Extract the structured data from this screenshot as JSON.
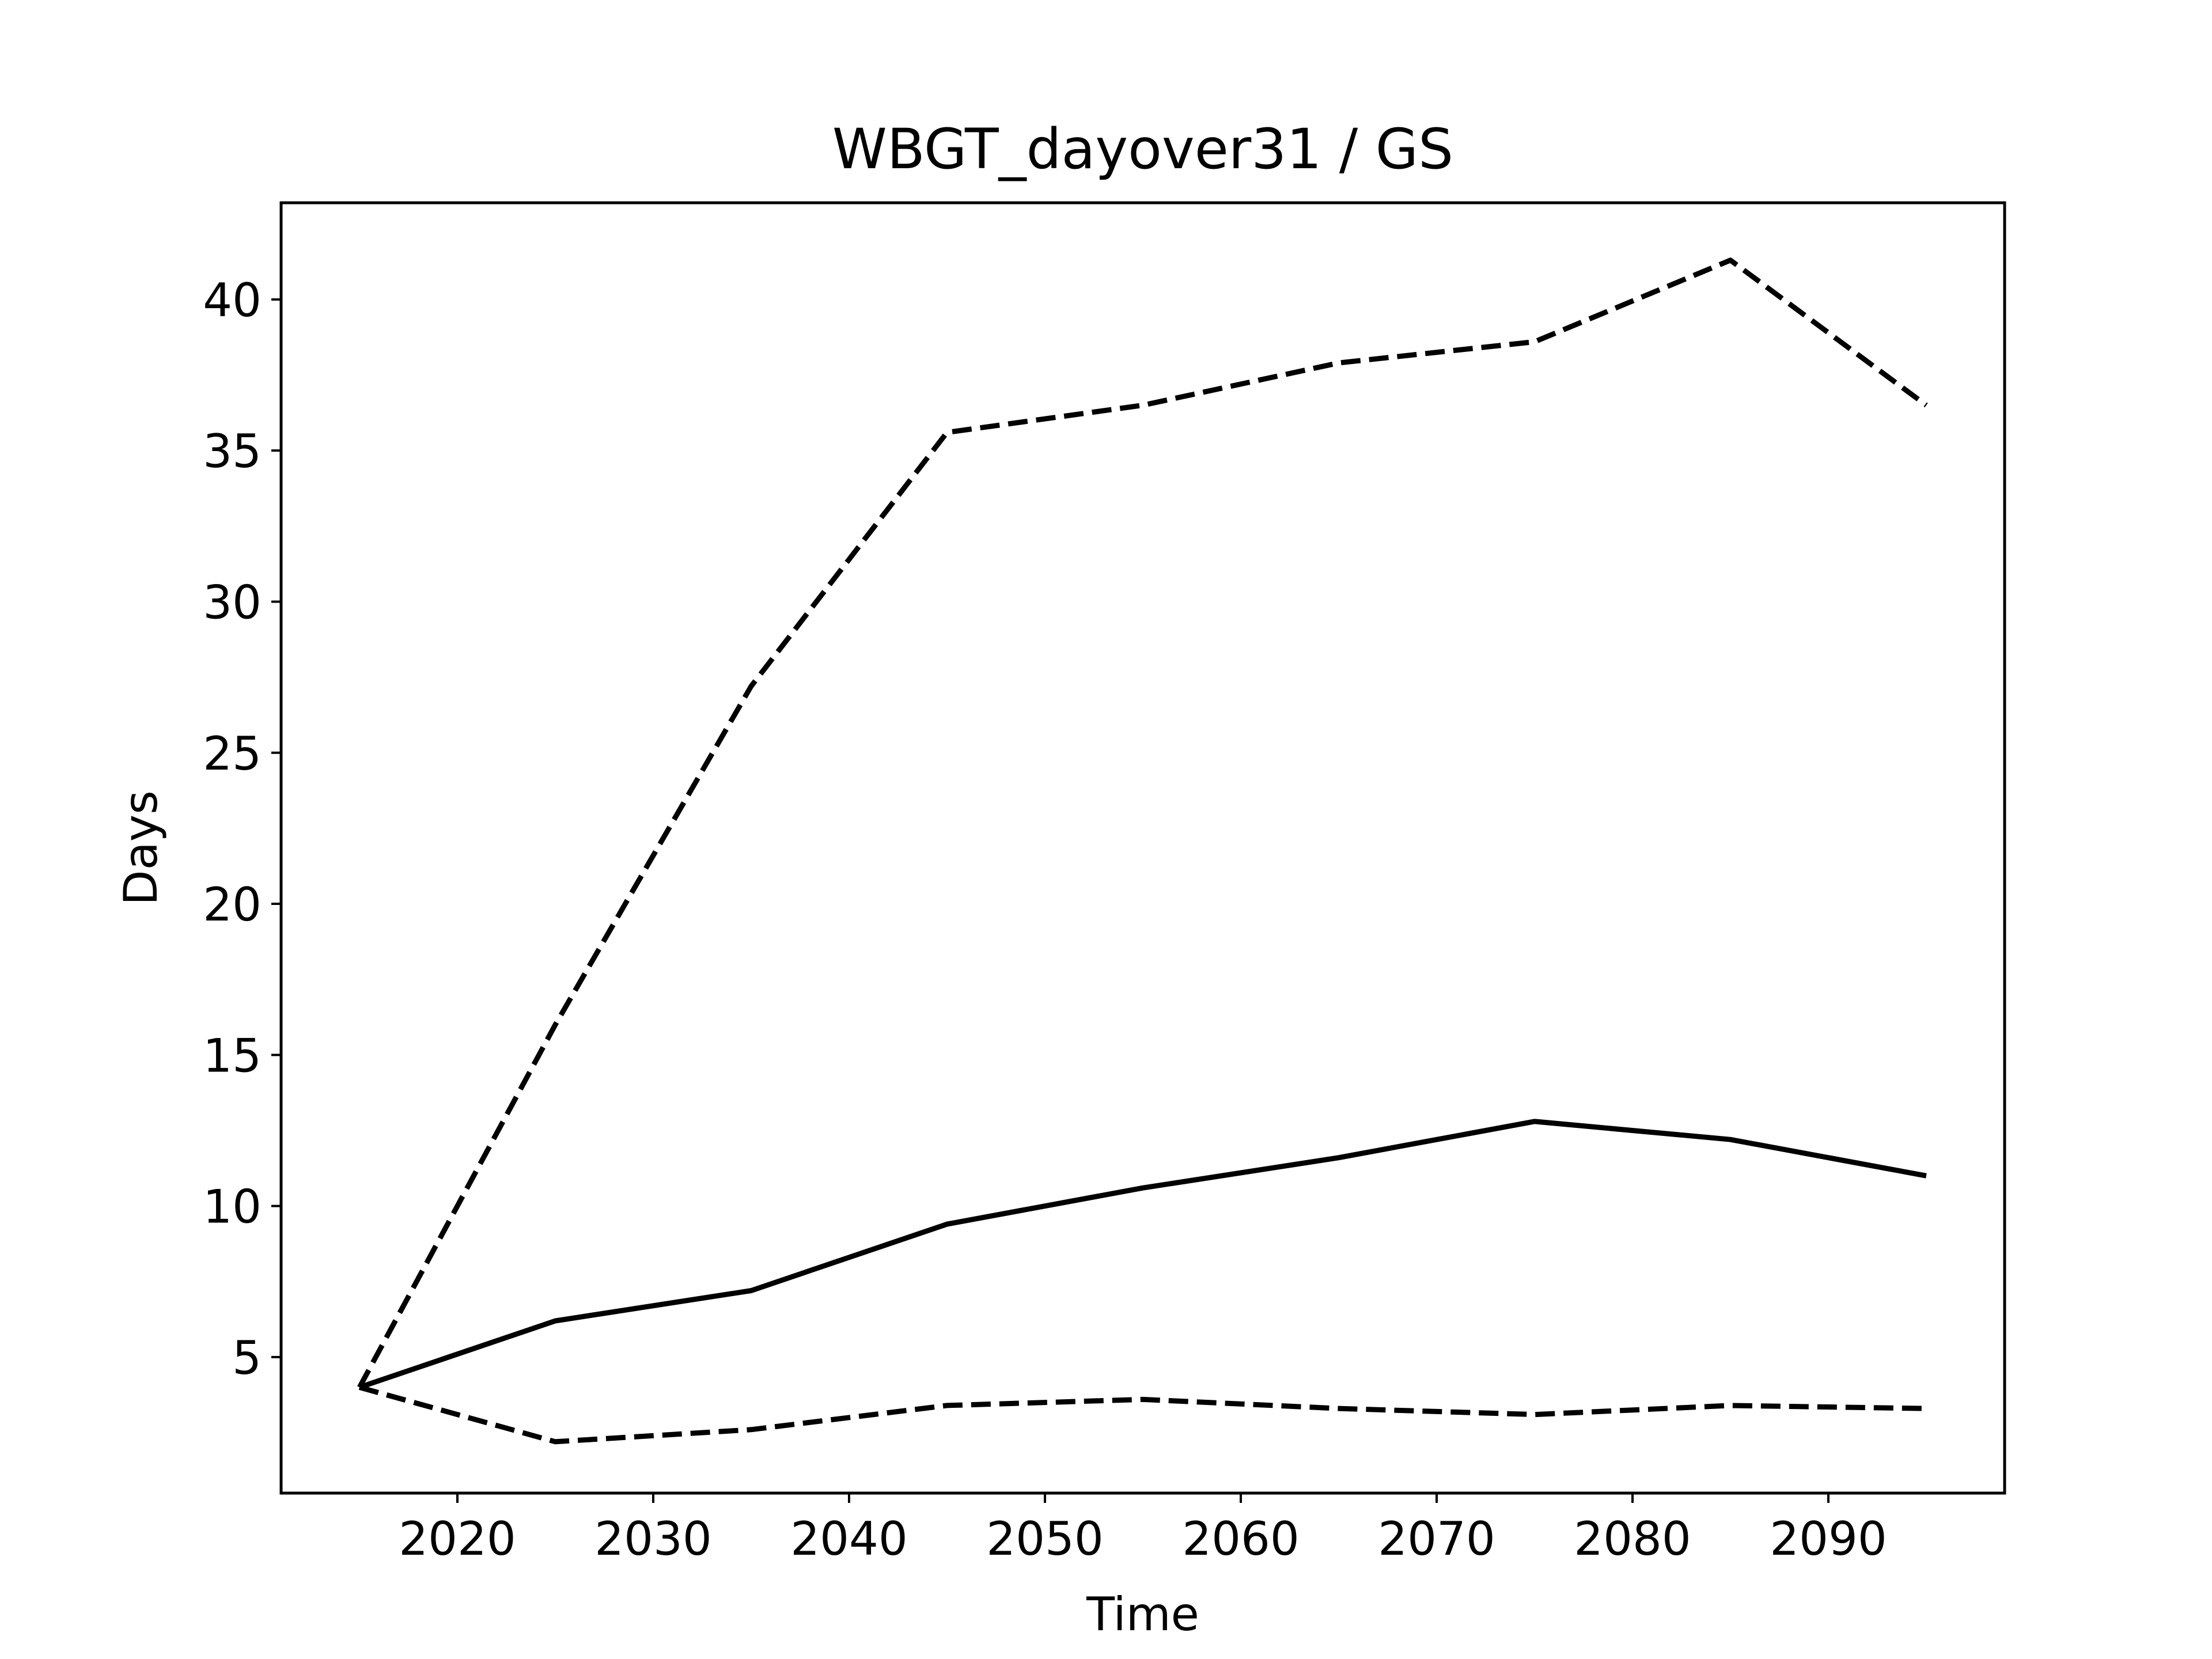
{
  "chart_data": {
    "type": "line",
    "title": "WBGT_dayover31 / GS",
    "xlabel": "Time",
    "ylabel": "Days",
    "xlim": [
      2011,
      2099
    ],
    "ylim": [
      0.5,
      43.2
    ],
    "xticks": [
      2020,
      2030,
      2040,
      2050,
      2060,
      2070,
      2080,
      2090
    ],
    "yticks": [
      5,
      10,
      15,
      20,
      25,
      30,
      35,
      40
    ],
    "grid": false,
    "legend": "none",
    "x": [
      2015,
      2025,
      2035,
      2045,
      2055,
      2065,
      2075,
      2085,
      2095
    ],
    "series": [
      {
        "style": "solid",
        "color": "#000000",
        "values": [
          4.0,
          6.2,
          7.2,
          9.4,
          10.6,
          11.6,
          12.8,
          12.2,
          11.0
        ]
      },
      {
        "style": "dashed",
        "color": "#000000",
        "values": [
          4.0,
          16.0,
          27.2,
          35.6,
          36.5,
          37.9,
          38.6,
          41.3,
          36.5
        ]
      },
      {
        "style": "dashed",
        "color": "#000000",
        "values": [
          4.0,
          2.2,
          2.6,
          3.4,
          3.6,
          3.3,
          3.1,
          3.4,
          3.3
        ]
      }
    ]
  }
}
